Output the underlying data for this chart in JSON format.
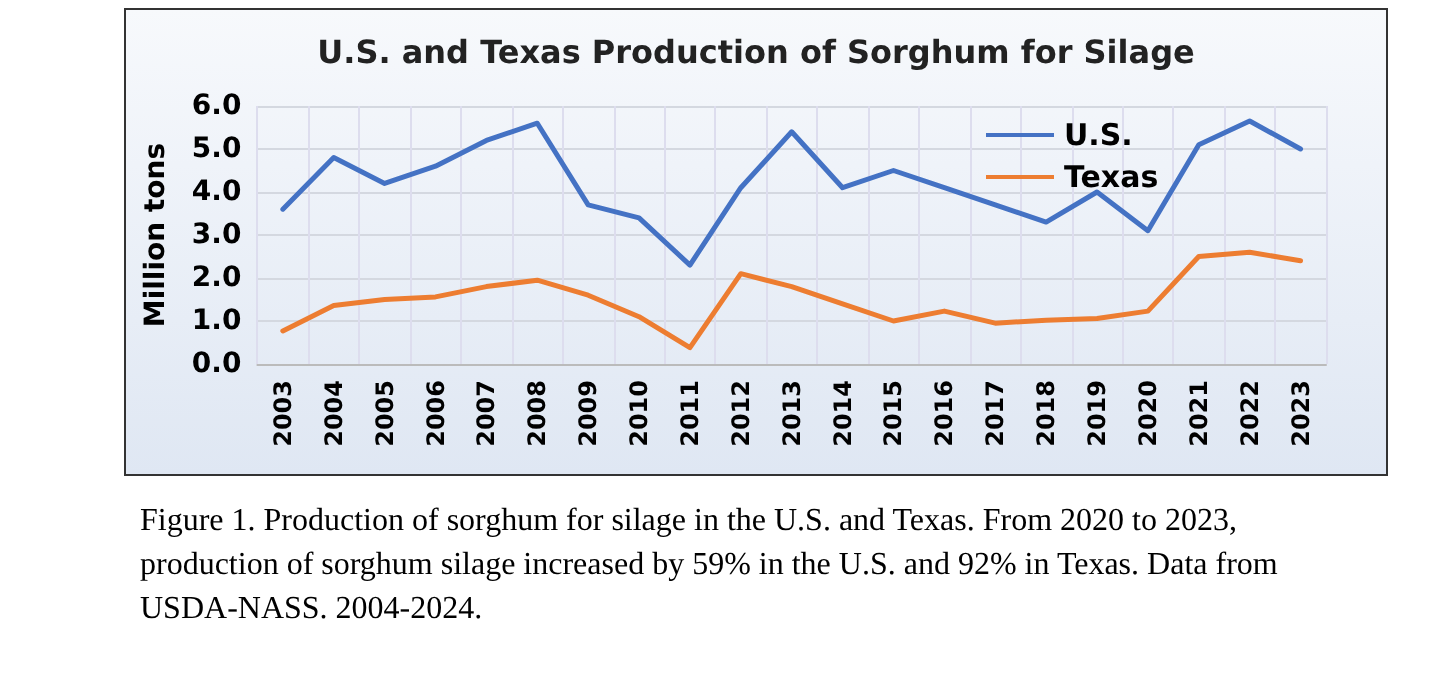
{
  "chart_data": {
    "type": "line",
    "title": "U.S. and Texas Production of Sorghum for Silage",
    "ylabel": "Million tons",
    "categories": [
      "2003",
      "2004",
      "2005",
      "2006",
      "2007",
      "2008",
      "2009",
      "2010",
      "2011",
      "2012",
      "2013",
      "2014",
      "2015",
      "2016",
      "2017",
      "2018",
      "2019",
      "2020",
      "2021",
      "2022",
      "2023"
    ],
    "series": [
      {
        "name": "U.S.",
        "color": "#4472c4",
        "values": [
          3.6,
          4.8,
          4.2,
          4.6,
          5.2,
          5.6,
          3.7,
          3.4,
          2.3,
          4.1,
          5.4,
          4.1,
          4.5,
          4.1,
          3.7,
          3.3,
          4.0,
          3.1,
          5.1,
          5.65,
          5.0
        ]
      },
      {
        "name": "Texas",
        "color": "#ed7d31",
        "values": [
          0.77,
          1.36,
          1.5,
          1.56,
          1.8,
          1.95,
          1.6,
          1.1,
          0.38,
          2.1,
          1.8,
          1.4,
          1.0,
          1.23,
          0.95,
          1.02,
          1.06,
          1.23,
          2.5,
          2.6,
          2.4
        ]
      }
    ],
    "ylim": [
      0,
      6
    ],
    "yticks": [
      {
        "value": 0,
        "label": "0.0"
      },
      {
        "value": 1,
        "label": "1.0"
      },
      {
        "value": 2,
        "label": "2.0"
      },
      {
        "value": 3,
        "label": "3.0"
      },
      {
        "value": 4,
        "label": "4.0"
      },
      {
        "value": 5,
        "label": "5.0"
      },
      {
        "value": 6,
        "label": "6.0"
      }
    ],
    "grid": true,
    "legend": "top right",
    "marker": "none",
    "line_style": "solid",
    "annotations": [
      "Figure 1. Production of sorghum for silage in the U.S. and Texas. From 2020 to 2023, production of sorghum silage increased by 59% in the U.S. and 92% in Texas. Data from USDA-NASS. 2004-2024."
    ]
  }
}
